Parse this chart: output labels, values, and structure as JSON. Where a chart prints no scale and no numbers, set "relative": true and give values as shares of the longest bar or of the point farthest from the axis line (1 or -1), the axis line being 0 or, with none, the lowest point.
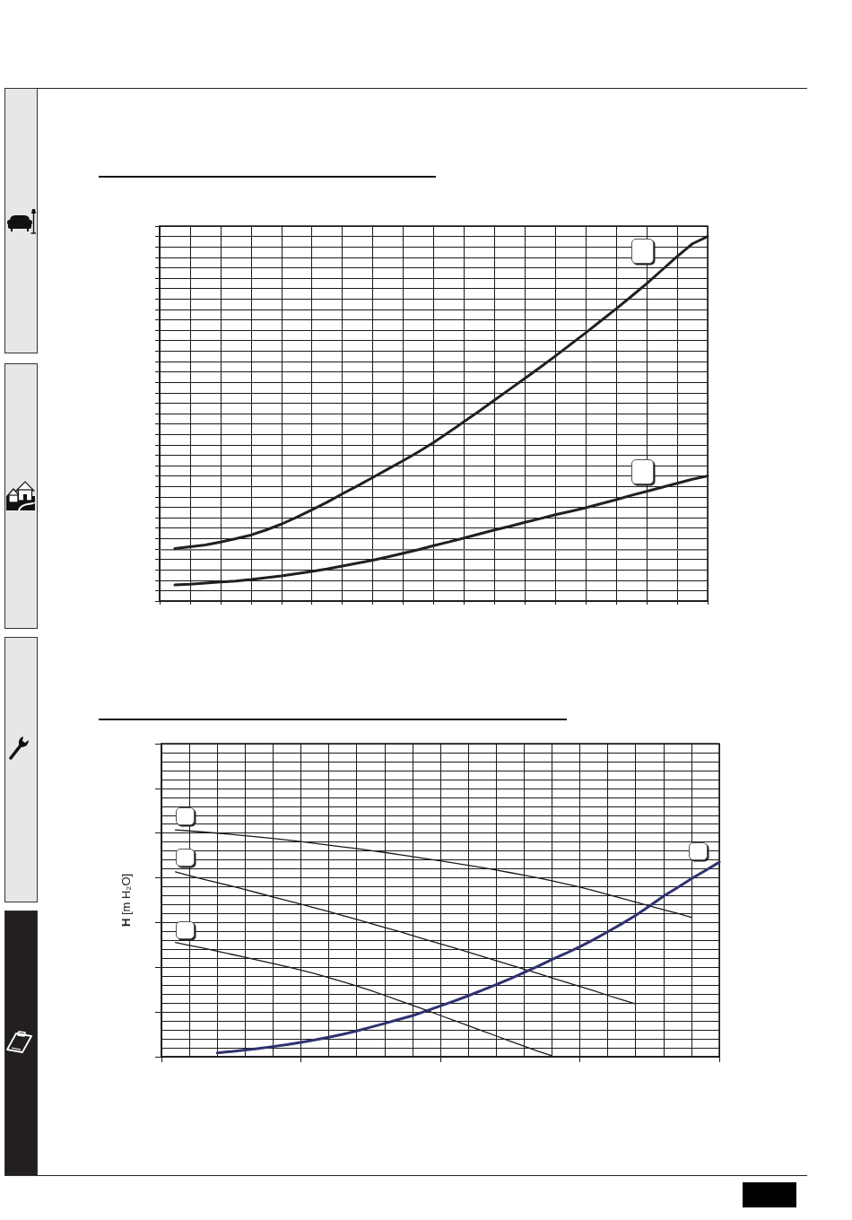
{
  "chart_data": [
    {
      "type": "line",
      "relative": true,
      "categories": [
        null,
        null,
        null,
        null,
        null,
        null,
        null,
        null,
        null,
        null,
        null,
        null,
        null,
        null,
        null,
        null,
        null,
        null,
        null,
        null,
        null,
        null,
        null,
        null,
        null,
        null,
        null,
        null,
        null,
        null,
        null,
        null,
        null,
        null,
        null,
        null,
        null
      ],
      "series": [
        {
          "color": "#231f20",
          "values": [
            null,
            0.144,
            0.149,
            0.154,
            0.162,
            0.171,
            0.181,
            0.195,
            0.211,
            0.23,
            0.25,
            0.271,
            0.294,
            0.316,
            0.339,
            0.362,
            0.385,
            0.409,
            0.435,
            0.463,
            0.492,
            0.521,
            0.551,
            0.581,
            0.611,
            0.641,
            0.672,
            0.704,
            0.736,
            0.769,
            0.802,
            0.836,
            0.871,
            0.908,
            0.945,
            0.98,
            1
          ]
        },
        {
          "color": "#231f20",
          "values": [
            null,
            0.044,
            0.046,
            0.049,
            0.052,
            0.055,
            0.059,
            0.064,
            0.069,
            0.075,
            0.081,
            0.088,
            0.096,
            0.104,
            0.112,
            0.121,
            0.131,
            0.141,
            0.152,
            0.162,
            0.173,
            0.184,
            0.195,
            0.205,
            0.216,
            0.226,
            0.237,
            0.246,
            0.256,
            0.267,
            0.278,
            0.29,
            0.301,
            0.312,
            0.323,
            0.334,
            0.343
          ]
        }
      ],
      "ref_lines": [
        {
          "axis": "y",
          "value": 0.143,
          "color": "#7f7f7f"
        }
      ],
      "grid": true,
      "marker": "none"
    },
    {
      "type": "line",
      "relative": true,
      "ylabel": "H [m H₂O]",
      "categories": [
        null,
        null,
        null,
        null,
        null,
        null,
        null,
        null,
        null,
        null,
        null,
        null,
        null,
        null,
        null,
        null,
        null,
        null,
        null,
        null,
        null,
        null,
        null,
        null,
        null,
        null,
        null,
        null,
        null,
        null,
        null,
        null,
        null,
        null,
        null,
        null,
        null,
        null,
        null,
        null,
        null
      ],
      "series": [
        {
          "color": "#1a1a1a",
          "values": [
            null,
            1,
            0.996,
            0.991,
            0.986,
            0.981,
            0.975,
            0.969,
            0.963,
            0.956,
            0.949,
            0.941,
            0.933,
            0.925,
            0.918,
            0.909,
            0.901,
            0.892,
            0.883,
            0.873,
            0.864,
            0.854,
            0.844,
            0.834,
            0.823,
            0.812,
            0.801,
            0.789,
            0.776,
            0.762,
            0.748,
            0.732,
            0.716,
            0.699,
            0.682,
            0.665,
            0.648,
            0.632,
            0.615,
            null,
            null
          ]
        },
        {
          "color": "#1a1a1a",
          "values": [
            null,
            0.815,
            0.799,
            0.783,
            0.768,
            0.753,
            0.737,
            0.721,
            0.705,
            0.689,
            0.673,
            0.656,
            0.64,
            0.623,
            0.606,
            0.588,
            0.57,
            0.553,
            0.535,
            0.516,
            0.498,
            0.48,
            0.461,
            0.443,
            0.424,
            0.405,
            0.386,
            0.367,
            0.348,
            0.329,
            0.31,
            0.291,
            0.271,
            0.252,
            0.233,
            null,
            null,
            null,
            null,
            null,
            null
          ]
        },
        {
          "color": "#1a1a1a",
          "values": [
            null,
            0.504,
            0.491,
            0.479,
            0.465,
            0.452,
            0.439,
            0.425,
            0.411,
            0.397,
            0.382,
            0.366,
            0.349,
            0.331,
            0.312,
            0.292,
            0.271,
            0.249,
            0.227,
            0.205,
            0.182,
            0.16,
            0.137,
            0.114,
            0.092,
            0.069,
            0.047,
            0.024,
            0.004,
            null,
            null,
            null,
            null,
            null,
            null,
            null,
            null,
            null,
            null,
            null,
            null
          ]
        },
        {
          "color": "#2e3270",
          "values": [
            null,
            null,
            null,
            null,
            0.017,
            0.023,
            0.03,
            0.037,
            0.045,
            0.053,
            0.063,
            0.074,
            0.086,
            0.099,
            0.114,
            0.13,
            0.147,
            0.164,
            0.181,
            0.202,
            0.224,
            0.246,
            0.269,
            0.293,
            0.318,
            0.344,
            0.371,
            0.399,
            0.429,
            0.456,
            0.485,
            0.517,
            0.551,
            0.586,
            0.623,
            0.665,
            0.708,
            0.746,
            0.785,
            0.821,
            0.858
          ]
        }
      ],
      "grid": true,
      "marker": "none"
    }
  ]
}
